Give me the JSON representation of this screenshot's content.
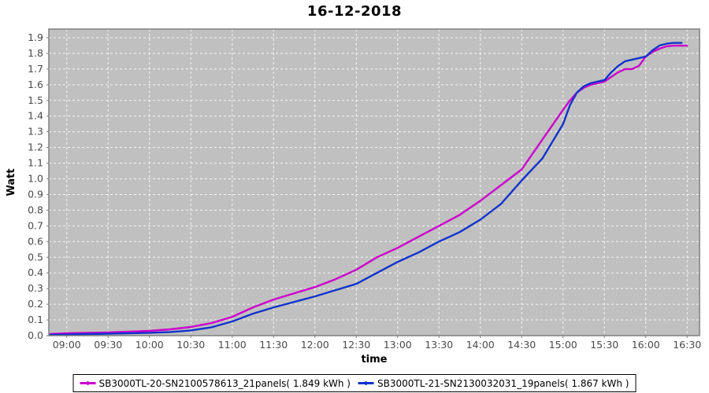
{
  "title": "16-12-2018",
  "chart_data": {
    "type": "line",
    "title": "16-12-2018",
    "xlabel": "time",
    "ylabel": "Watt",
    "x_tick_labels": [
      "09:00",
      "09:30",
      "10:00",
      "10:30",
      "11:00",
      "11:30",
      "12:00",
      "12:30",
      "13:00",
      "13:30",
      "14:00",
      "14:30",
      "15:00",
      "15:30",
      "16:00",
      "16:30"
    ],
    "y_tick_labels": [
      "0.0",
      "0.1",
      "0.2",
      "0.3",
      "0.4",
      "0.5",
      "0.6",
      "0.7",
      "0.8",
      "0.9",
      "1.0",
      "1.1",
      "1.2",
      "1.3",
      "1.4",
      "1.5",
      "1.6",
      "1.7",
      "1.8",
      "1.9"
    ],
    "y_tick_values": [
      0,
      0.1,
      0.2,
      0.3,
      0.4,
      0.5,
      0.6,
      0.7,
      0.8,
      0.9,
      1.0,
      1.1,
      1.2,
      1.3,
      1.4,
      1.5,
      1.6,
      1.7,
      1.8,
      1.9
    ],
    "x_domain_minutes": [
      527,
      999
    ],
    "y_domain": [
      0,
      1.955
    ],
    "grid": "white dashed on gray background",
    "legend_position": "bottom-center",
    "plot_bg_color": "#c0c0c0",
    "grid_color": "#ffffff",
    "outline_color": "#7f7f7f",
    "tick_label_color": "#4a4a4a",
    "series": [
      {
        "name": "SB3000TL-20-SN2100578613_21panels( 1.849 kWh )",
        "color": "#cc00cc",
        "total_kwh": "1.849",
        "points": [
          [
            "08:48",
            0.01
          ],
          [
            "09:00",
            0.015
          ],
          [
            "09:15",
            0.018
          ],
          [
            "09:30",
            0.02
          ],
          [
            "09:45",
            0.025
          ],
          [
            "10:00",
            0.03
          ],
          [
            "10:15",
            0.04
          ],
          [
            "10:30",
            0.055
          ],
          [
            "10:45",
            0.08
          ],
          [
            "11:00",
            0.12
          ],
          [
            "11:15",
            0.18
          ],
          [
            "11:30",
            0.23
          ],
          [
            "11:45",
            0.27
          ],
          [
            "12:00",
            0.31
          ],
          [
            "12:15",
            0.36
          ],
          [
            "12:30",
            0.42
          ],
          [
            "12:45",
            0.5
          ],
          [
            "13:00",
            0.56
          ],
          [
            "13:15",
            0.63
          ],
          [
            "13:30",
            0.7
          ],
          [
            "13:45",
            0.77
          ],
          [
            "14:00",
            0.86
          ],
          [
            "14:15",
            0.96
          ],
          [
            "14:30",
            1.06
          ],
          [
            "14:45",
            1.25
          ],
          [
            "15:00",
            1.44
          ],
          [
            "15:05",
            1.5
          ],
          [
            "15:10",
            1.55
          ],
          [
            "15:15",
            1.58
          ],
          [
            "15:20",
            1.6
          ],
          [
            "15:25",
            1.61
          ],
          [
            "15:30",
            1.62
          ],
          [
            "15:35",
            1.65
          ],
          [
            "15:40",
            1.68
          ],
          [
            "15:45",
            1.7
          ],
          [
            "15:50",
            1.7
          ],
          [
            "15:55",
            1.72
          ],
          [
            "16:00",
            1.78
          ],
          [
            "16:05",
            1.81
          ],
          [
            "16:10",
            1.83
          ],
          [
            "16:15",
            1.845
          ],
          [
            "16:20",
            1.849
          ],
          [
            "16:30",
            1.849
          ]
        ]
      },
      {
        "name": "SB3000TL-21-SN2130032031_19panels( 1.867 kWh )",
        "color": "#1133cc",
        "total_kwh": "1.867",
        "points": [
          [
            "08:48",
            0.005
          ],
          [
            "09:00",
            0.007
          ],
          [
            "09:15",
            0.01
          ],
          [
            "09:30",
            0.012
          ],
          [
            "09:45",
            0.015
          ],
          [
            "10:00",
            0.018
          ],
          [
            "10:15",
            0.023
          ],
          [
            "10:30",
            0.033
          ],
          [
            "10:45",
            0.053
          ],
          [
            "11:00",
            0.09
          ],
          [
            "11:15",
            0.14
          ],
          [
            "11:30",
            0.18
          ],
          [
            "11:45",
            0.215
          ],
          [
            "12:00",
            0.25
          ],
          [
            "12:15",
            0.29
          ],
          [
            "12:30",
            0.33
          ],
          [
            "12:45",
            0.4
          ],
          [
            "13:00",
            0.47
          ],
          [
            "13:15",
            0.53
          ],
          [
            "13:30",
            0.6
          ],
          [
            "13:45",
            0.66
          ],
          [
            "14:00",
            0.74
          ],
          [
            "14:15",
            0.84
          ],
          [
            "14:30",
            0.99
          ],
          [
            "14:45",
            1.13
          ],
          [
            "15:00",
            1.35
          ],
          [
            "15:05",
            1.47
          ],
          [
            "15:10",
            1.55
          ],
          [
            "15:15",
            1.59
          ],
          [
            "15:20",
            1.61
          ],
          [
            "15:25",
            1.62
          ],
          [
            "15:30",
            1.63
          ],
          [
            "15:35",
            1.68
          ],
          [
            "15:40",
            1.72
          ],
          [
            "15:45",
            1.75
          ],
          [
            "15:50",
            1.76
          ],
          [
            "15:55",
            1.77
          ],
          [
            "16:00",
            1.78
          ],
          [
            "16:05",
            1.82
          ],
          [
            "16:10",
            1.85
          ],
          [
            "16:15",
            1.862
          ],
          [
            "16:20",
            1.867
          ],
          [
            "16:26",
            1.867
          ]
        ]
      }
    ]
  },
  "legend": {
    "items": [
      {
        "label": "SB3000TL-20-SN2100578613_21panels( 1.849 kWh )",
        "color": "#cc00cc"
      },
      {
        "label": "SB3000TL-21-SN2130032031_19panels( 1.867 kWh )",
        "color": "#1133cc"
      }
    ]
  }
}
